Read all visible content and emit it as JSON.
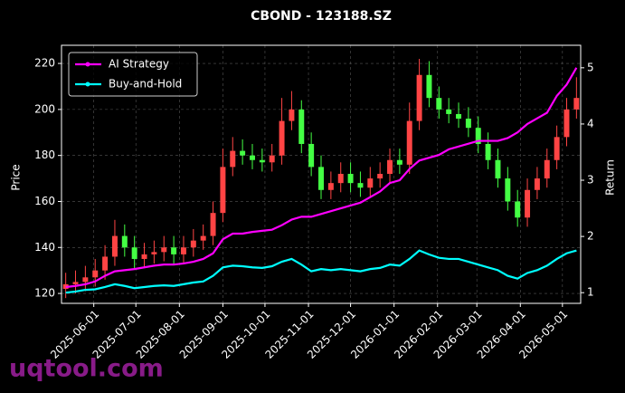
{
  "chart_data": {
    "type": "candlestick",
    "title": "CBOND - 123188.SZ",
    "ylabel": "Price",
    "y2label": "Return",
    "x": [
      "2025-05-12",
      "2025-05-19",
      "2025-05-26",
      "2025-06-02",
      "2025-06-09",
      "2025-06-16",
      "2025-06-23",
      "2025-06-30",
      "2025-07-07",
      "2025-07-14",
      "2025-07-21",
      "2025-07-28",
      "2025-08-04",
      "2025-08-11",
      "2025-08-18",
      "2025-08-25",
      "2025-09-01",
      "2025-09-08",
      "2025-09-15",
      "2025-09-22",
      "2025-09-29",
      "2025-10-06",
      "2025-10-13",
      "2025-10-20",
      "2025-10-27",
      "2025-11-03",
      "2025-11-10",
      "2025-11-17",
      "2025-11-24",
      "2025-12-01",
      "2025-12-08",
      "2025-12-15",
      "2025-12-22",
      "2025-12-29",
      "2026-01-05",
      "2026-01-12",
      "2026-01-19",
      "2026-01-26",
      "2026-02-02",
      "2026-02-09",
      "2026-02-16",
      "2026-02-23",
      "2026-03-02",
      "2026-03-09",
      "2026-03-16",
      "2026-03-23",
      "2026-03-30",
      "2026-04-06",
      "2026-04-13",
      "2026-04-20",
      "2026-04-27",
      "2026-05-04",
      "2026-05-11"
    ],
    "open": [
      122,
      124,
      125,
      127,
      130,
      136,
      145,
      140,
      135,
      137,
      138,
      140,
      137,
      140,
      143,
      145,
      155,
      175,
      182,
      180,
      178,
      177,
      180,
      195,
      200,
      185,
      175,
      165,
      168,
      172,
      168,
      166,
      170,
      172,
      178,
      176,
      195,
      215,
      205,
      200,
      198,
      196,
      192,
      185,
      178,
      170,
      160,
      153,
      165,
      170,
      178,
      188,
      200
    ],
    "high": [
      129,
      130,
      132,
      135,
      141,
      152,
      150,
      145,
      142,
      143,
      145,
      145,
      145,
      148,
      150,
      160,
      183,
      188,
      187,
      185,
      183,
      185,
      205,
      208,
      204,
      190,
      180,
      173,
      177,
      177,
      173,
      175,
      177,
      183,
      183,
      203,
      222,
      221,
      210,
      205,
      203,
      201,
      197,
      190,
      183,
      175,
      165,
      170,
      175,
      183,
      193,
      205,
      214
    ],
    "low": [
      118,
      120,
      121,
      123,
      126,
      132,
      136,
      131,
      131,
      133,
      134,
      133,
      133,
      136,
      139,
      141,
      151,
      171,
      176,
      174,
      173,
      173,
      176,
      191,
      181,
      171,
      161,
      161,
      164,
      164,
      162,
      162,
      166,
      168,
      172,
      172,
      191,
      201,
      196,
      194,
      192,
      188,
      181,
      174,
      166,
      156,
      149,
      149,
      161,
      166,
      174,
      184,
      196
    ],
    "close": [
      124,
      125,
      127,
      130,
      136,
      145,
      140,
      135,
      137,
      138,
      140,
      137,
      140,
      143,
      145,
      155,
      175,
      182,
      180,
      178,
      177,
      180,
      195,
      200,
      185,
      175,
      165,
      168,
      172,
      168,
      166,
      170,
      172,
      178,
      176,
      195,
      215,
      205,
      200,
      198,
      196,
      192,
      185,
      178,
      170,
      160,
      153,
      165,
      170,
      178,
      188,
      200,
      205
    ],
    "up_color": "#ff4444",
    "down_color": "#44ff44",
    "series": [
      {
        "name": "AI Strategy",
        "color": "#ff00ff",
        "axis": "y2",
        "values": [
          1.1,
          1.12,
          1.15,
          1.2,
          1.3,
          1.38,
          1.4,
          1.42,
          1.45,
          1.48,
          1.5,
          1.5,
          1.52,
          1.55,
          1.6,
          1.7,
          1.95,
          2.05,
          2.05,
          2.08,
          2.1,
          2.12,
          2.2,
          2.3,
          2.35,
          2.35,
          2.4,
          2.45,
          2.5,
          2.55,
          2.6,
          2.7,
          2.8,
          2.95,
          3.0,
          3.2,
          3.35,
          3.4,
          3.45,
          3.55,
          3.6,
          3.65,
          3.7,
          3.7,
          3.7,
          3.75,
          3.85,
          4.0,
          4.1,
          4.2,
          4.5,
          4.7,
          5.0
        ]
      },
      {
        "name": "Buy-and-Hold",
        "color": "#00ffff",
        "axis": "y2",
        "values": [
          1.0,
          1.02,
          1.05,
          1.06,
          1.1,
          1.15,
          1.12,
          1.08,
          1.1,
          1.12,
          1.13,
          1.12,
          1.15,
          1.18,
          1.2,
          1.3,
          1.45,
          1.48,
          1.47,
          1.45,
          1.44,
          1.47,
          1.55,
          1.6,
          1.5,
          1.38,
          1.42,
          1.4,
          1.42,
          1.4,
          1.38,
          1.42,
          1.44,
          1.5,
          1.48,
          1.6,
          1.75,
          1.68,
          1.62,
          1.6,
          1.6,
          1.55,
          1.5,
          1.45,
          1.4,
          1.3,
          1.25,
          1.35,
          1.4,
          1.48,
          1.6,
          1.7,
          1.75
        ]
      }
    ],
    "xlim": [
      "2025-05-09",
      "2026-05-14"
    ],
    "xticks": [
      "2025-06-01",
      "2025-07-01",
      "2025-08-01",
      "2025-09-01",
      "2025-10-01",
      "2025-11-01",
      "2025-12-01",
      "2026-01-01",
      "2026-02-01",
      "2026-03-01",
      "2026-04-01",
      "2026-05-01"
    ],
    "ylim": [
      115.7,
      227.9
    ],
    "yticks": [
      120,
      140,
      160,
      180,
      200,
      220
    ],
    "y2lim": [
      0.81,
      5.4
    ],
    "y2ticks": [
      1,
      2,
      3,
      4,
      5
    ],
    "grid": true,
    "legend": "upper left"
  },
  "watermark": "uqtool.com"
}
